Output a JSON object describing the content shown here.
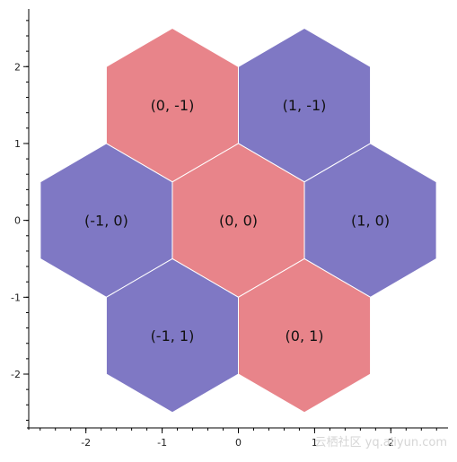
{
  "chart_data": {
    "type": "hexbin",
    "title": "",
    "xlabel": "",
    "ylabel": "",
    "xlim": [
      -2.75,
      2.75
    ],
    "ylim": [
      -2.7,
      2.75
    ],
    "x_ticks": [
      -2,
      -1,
      0,
      1,
      2
    ],
    "y_ticks": [
      2,
      1,
      0,
      -1,
      -2
    ],
    "hex_size": 1,
    "orientation": "pointy-top",
    "grid": false,
    "colors": {
      "red": "#e8848a",
      "blue": "#7f78c4",
      "edge": "#ffffff"
    },
    "tiles": [
      {
        "q": 0,
        "r": -1,
        "label": "(0, -1)",
        "color": "red"
      },
      {
        "q": 1,
        "r": -1,
        "label": "(1, -1)",
        "color": "blue"
      },
      {
        "q": -1,
        "r": 0,
        "label": "(-1, 0)",
        "color": "blue"
      },
      {
        "q": 0,
        "r": 0,
        "label": "(0, 0)",
        "color": "red"
      },
      {
        "q": 1,
        "r": 0,
        "label": "(1, 0)",
        "color": "blue"
      },
      {
        "q": -1,
        "r": 1,
        "label": "(-1, 1)",
        "color": "blue"
      },
      {
        "q": 0,
        "r": 1,
        "label": "(0, 1)",
        "color": "red"
      }
    ]
  },
  "watermark": "云栖社区 yq.aliyun.com"
}
